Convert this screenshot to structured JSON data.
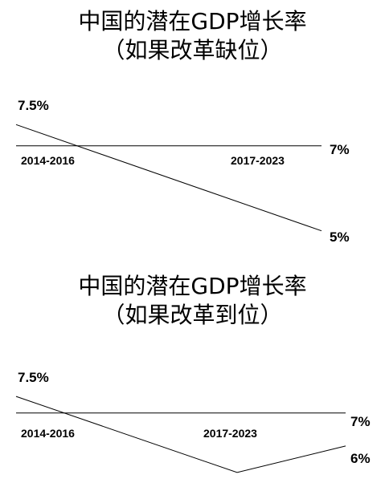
{
  "chart_data": [
    {
      "type": "line",
      "title": "中国的潜在GDP增长率",
      "subtitle": "（如果改革缺位）",
      "categories": [
        "2014-2016",
        "2017-2023"
      ],
      "reference": {
        "value": 7,
        "label": "7%"
      },
      "series": [
        {
          "points": [
            7.5,
            5
          ],
          "start_label": "7.5%",
          "end_label": "5%"
        }
      ],
      "ylim": [
        4.9,
        7.6
      ],
      "grid": false,
      "legend": "none"
    },
    {
      "type": "line",
      "title": "中国的潜在GDP增长率",
      "subtitle": "（如果改革到位）",
      "categories": [
        "2014-2016",
        "2017-2023"
      ],
      "reference": {
        "value": 7,
        "label": "7%"
      },
      "series": [
        {
          "points": [
            7.5,
            5.2,
            6
          ],
          "start_label": "7.5%",
          "end_label": "6%"
        }
      ],
      "ylim": [
        5.1,
        7.6
      ],
      "grid": false,
      "legend": "none"
    }
  ]
}
